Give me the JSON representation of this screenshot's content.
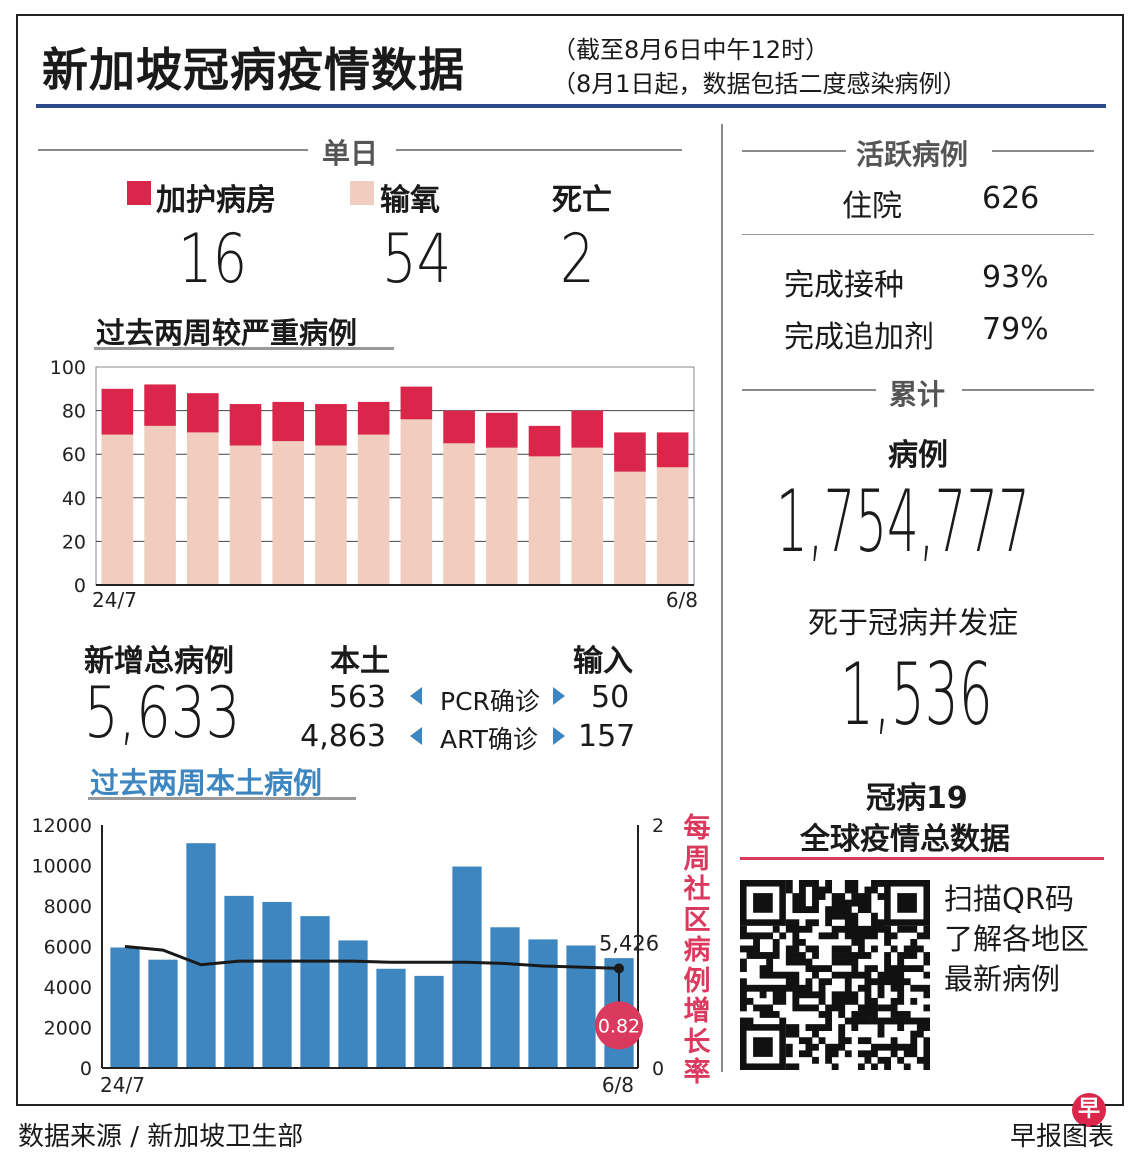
{
  "header": {
    "title": "新加坡冠病疫情数据",
    "subtitle_line1": "（截至8月6日中午12时）",
    "subtitle_line2": "（8月1日起，数据包括二度感染病例）"
  },
  "daily": {
    "section_label": "单日",
    "icu_label": "加护病房",
    "icu_value": "16",
    "oxygen_label": "输氧",
    "oxygen_value": "54",
    "deaths_label": "死亡",
    "deaths_value": "2"
  },
  "severe_chart_title": "过去两周较严重病例",
  "new_cases": {
    "label": "新增总病例",
    "value": "5,633",
    "local_label": "本土",
    "imported_label": "输入",
    "pcr_label": "PCR确诊",
    "art_label": "ART确诊",
    "pcr_local": "563",
    "pcr_imported": "50",
    "art_local": "4,863",
    "art_imported": "157"
  },
  "local_chart_title": "过去两周本土病例",
  "growth_rate_label": "每周社区病例增长率",
  "active": {
    "section_label": "活跃病例",
    "hospitalized_label": "住院",
    "hospitalized_value": "626",
    "vaccinated_label": "完成接种",
    "vaccinated_value": "93%",
    "booster_label": "完成追加剂",
    "booster_value": "79%"
  },
  "cumulative": {
    "section_label": "累计",
    "cases_label": "病例",
    "cases_value": "1,754,777",
    "deaths_label": "死于冠病并发症",
    "deaths_value": "1,536"
  },
  "global": {
    "line1": "冠病19",
    "line2": "全球疫情总数据",
    "qr_text1": "扫描QR码",
    "qr_text2": "了解各地区",
    "qr_text3": "最新病例"
  },
  "footer": {
    "source": "数据来源 / 新加坡卫生部",
    "credit": "早报图表",
    "logo_char": "早"
  },
  "colors": {
    "accent_red": "#d9264a",
    "oxygen_pink": "#f0cdbf",
    "bar_blue": "#3d86c0",
    "title_blue": "#2b4a8a",
    "growth_red": "#d93a5e"
  },
  "chart_data": [
    {
      "type": "bar",
      "stacked": true,
      "title": "过去两周较严重病例",
      "x_first_label": "24/7",
      "x_last_label": "6/8",
      "yticks": [
        "0",
        "20",
        "40",
        "60",
        "80",
        "100"
      ],
      "ylim": [
        0,
        100
      ],
      "grid": true,
      "series": [
        {
          "name": "输氧",
          "color": "#f0cdbf",
          "values": [
            69,
            73,
            70,
            64,
            66,
            64,
            69,
            76,
            65,
            63,
            59,
            63,
            52,
            54
          ]
        },
        {
          "name": "加护病房",
          "color": "#d9264a",
          "values": [
            21,
            19,
            18,
            19,
            18,
            19,
            15,
            15,
            15,
            16,
            14,
            17,
            18,
            16
          ]
        }
      ]
    },
    {
      "type": "bar",
      "title": "过去两周本土病例",
      "x_first_label": "24/7",
      "x_last_label": "6/8",
      "yticks": [
        "0",
        "2000",
        "4000",
        "6000",
        "8000",
        "10000",
        "12000"
      ],
      "ylim": [
        0,
        12000
      ],
      "y2ticks": [
        "0",
        "2"
      ],
      "y2lim": [
        0,
        2
      ],
      "series": [
        {
          "color": "#3d86c0",
          "values": [
            5950,
            5350,
            11100,
            8500,
            8200,
            7500,
            6300,
            4900,
            4550,
            9950,
            6950,
            6350,
            6050,
            5426
          ]
        },
        {
          "type": "line",
          "color": "#1a1a1a",
          "axis": "y2",
          "values": [
            1.0,
            0.97,
            0.85,
            0.88,
            0.88,
            0.88,
            0.88,
            0.87,
            0.87,
            0.87,
            0.86,
            0.84,
            0.83,
            0.82
          ]
        }
      ],
      "annotations": [
        {
          "text": "5,426"
        },
        {
          "text": "0.82"
        }
      ]
    }
  ]
}
